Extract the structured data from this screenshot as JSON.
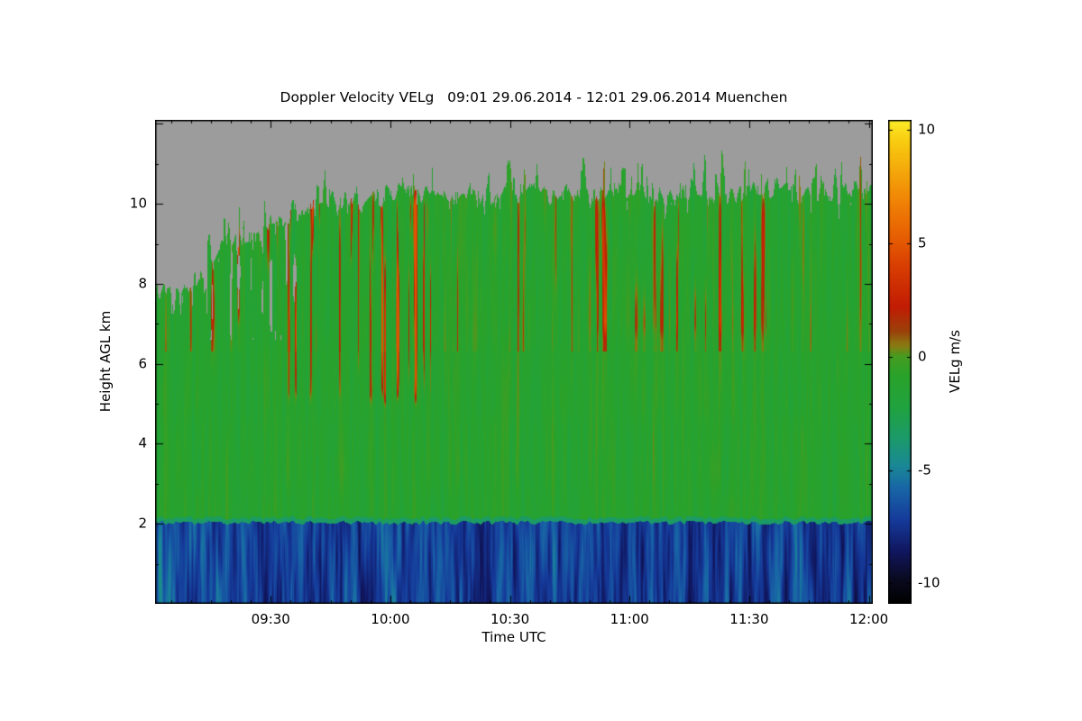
{
  "chart_data": {
    "type": "heatmap",
    "title": "Doppler Velocity VELg   09:01 29.06.2014 - 12:01 29.06.2014 Muenchen",
    "xlabel": "Time UTC",
    "ylabel": "Height AGL km",
    "colorbar_label": "VELg m/s",
    "x_axis": {
      "range_minutes": [
        541,
        721
      ],
      "minor_step_minutes": 5,
      "major_ticks": [
        {
          "minute": 570,
          "label": "09:30"
        },
        {
          "minute": 600,
          "label": "10:00"
        },
        {
          "minute": 630,
          "label": "10:30"
        },
        {
          "minute": 660,
          "label": "11:00"
        },
        {
          "minute": 690,
          "label": "11:30"
        },
        {
          "minute": 720,
          "label": "12:00"
        }
      ]
    },
    "y_axis": {
      "range_km": [
        0,
        12.1
      ],
      "minor_step_km": 1,
      "major_ticks": [
        2,
        4,
        6,
        8,
        10
      ]
    },
    "colorbar": {
      "range": [
        -10.9,
        10.45
      ],
      "ticks": [
        10,
        5,
        0,
        -5,
        -10
      ],
      "stops": [
        [
          -10.9,
          "#000000"
        ],
        [
          -9.8,
          "#0a0a20"
        ],
        [
          -8.6,
          "#10165e"
        ],
        [
          -7.2,
          "#153a9a"
        ],
        [
          -5.8,
          "#1866a6"
        ],
        [
          -4.8,
          "#1a8896"
        ],
        [
          -3.6,
          "#1b9a6a"
        ],
        [
          -2.2,
          "#20a23e"
        ],
        [
          -0.8,
          "#2aa22a"
        ],
        [
          0.0,
          "#459c20"
        ],
        [
          0.5,
          "#8a7a12"
        ],
        [
          1.1,
          "#9a420a"
        ],
        [
          2.2,
          "#c21c04"
        ],
        [
          3.8,
          "#d63a02"
        ],
        [
          5.2,
          "#e65c02"
        ],
        [
          6.8,
          "#f08206"
        ],
        [
          8.2,
          "#f4a80a"
        ],
        [
          9.5,
          "#f8cc10"
        ],
        [
          10.45,
          "#fcec28"
        ]
      ]
    },
    "no_data_color": "#9c9c9c",
    "background_color": "#ffffff",
    "field": {
      "seed": 7,
      "melting_layer_km": 2.05,
      "mean_velocity_above_ms": -1.2,
      "mean_velocity_below_ms": -7.0,
      "baseline_mottle_strength": 1.1,
      "cloud_top_profile": [
        [
          541,
          7.6
        ],
        [
          546,
          7.65
        ],
        [
          551,
          7.9
        ],
        [
          556,
          8.6
        ],
        [
          560,
          9.0
        ],
        [
          565,
          9.3
        ],
        [
          571,
          9.7
        ],
        [
          578,
          10.0
        ],
        [
          585,
          10.1
        ],
        [
          592,
          10.0
        ],
        [
          599,
          10.25
        ],
        [
          607,
          10.35
        ],
        [
          615,
          10.2
        ],
        [
          624,
          10.35
        ],
        [
          633,
          10.25
        ],
        [
          642,
          10.3
        ],
        [
          651,
          10.25
        ],
        [
          660,
          10.3
        ],
        [
          669,
          10.25
        ],
        [
          678,
          10.35
        ],
        [
          687,
          10.25
        ],
        [
          696,
          10.4
        ],
        [
          705,
          10.3
        ],
        [
          713,
          10.25
        ],
        [
          721,
          10.5
        ]
      ],
      "updraft_bands": [
        {
          "t": [
            572,
            612
          ],
          "h": [
            4.8,
            10.4
          ],
          "strength": 3.2
        },
        {
          "t": [
            553,
            574
          ],
          "h": [
            6.8,
            9.7
          ],
          "strength": 2.0
        },
        {
          "t": [
            648,
            700
          ],
          "h": [
            6.5,
            10.3
          ],
          "strength": 0.9
        }
      ]
    }
  }
}
